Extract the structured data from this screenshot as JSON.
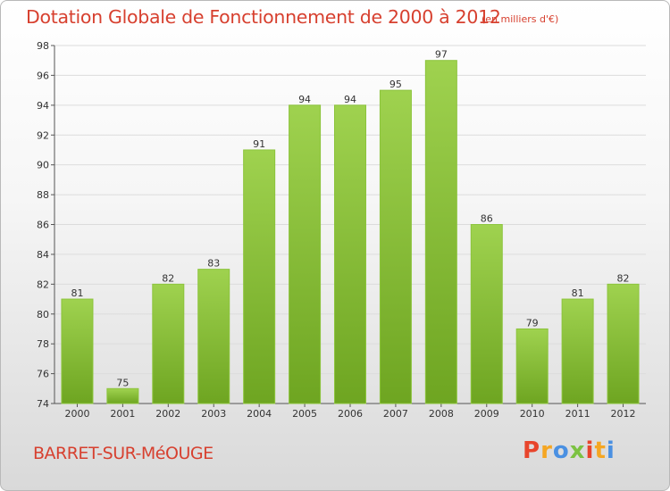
{
  "header": {
    "title": "Dotation Globale de Fonctionnement de 2000 à 2012",
    "unit": "(en milliers d'€)"
  },
  "footer": {
    "commune": "BARRET-SUR-MéOUGE",
    "brand": "Proxiti",
    "brand_colors": [
      "#e8452c",
      "#f5a623",
      "#4a90e2",
      "#7cc242",
      "#e8452c",
      "#f5a623",
      "#4a90e2"
    ]
  },
  "chart_data": {
    "type": "bar",
    "categories": [
      "2000",
      "2001",
      "2002",
      "2003",
      "2004",
      "2005",
      "2006",
      "2007",
      "2008",
      "2009",
      "2010",
      "2011",
      "2012"
    ],
    "values": [
      81,
      75,
      82,
      83,
      91,
      94,
      94,
      95,
      97,
      86,
      79,
      81,
      82
    ],
    "ylim": [
      74,
      98
    ],
    "yticks": [
      74,
      76,
      78,
      80,
      82,
      84,
      86,
      88,
      90,
      92,
      94,
      96,
      98
    ],
    "grid": true,
    "bar_color_top": "#9fd24f",
    "bar_color_bottom": "#6ea521"
  }
}
